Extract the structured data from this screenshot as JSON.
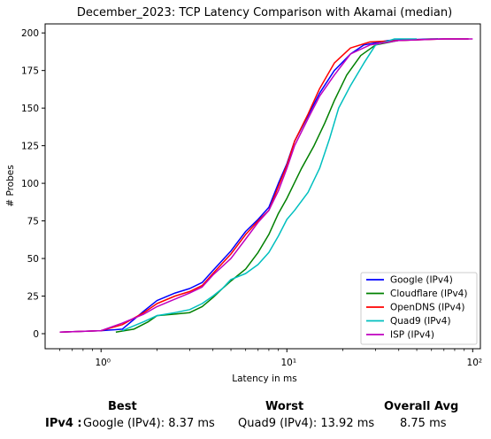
{
  "chart_data": {
    "type": "line",
    "title": "December_2023: TCP Latency Comparison with Akamai (median)",
    "xlabel": "Latency in ms",
    "ylabel": "# Probes",
    "xscale": "log",
    "xlim": [
      0.5,
      110
    ],
    "ylim": [
      -10,
      206
    ],
    "yticks": [
      0,
      25,
      50,
      75,
      100,
      125,
      150,
      175,
      200
    ],
    "xticks": [
      {
        "value": 1,
        "label": "10⁰"
      },
      {
        "value": 10,
        "label": "10¹"
      },
      {
        "value": 100,
        "label": "10²"
      }
    ],
    "grid": false,
    "legend_position": "lower-right",
    "series": [
      {
        "name": "Google (IPv4)",
        "color": "#0000ff",
        "points": [
          [
            0.6,
            1
          ],
          [
            1.0,
            2
          ],
          [
            1.3,
            3
          ],
          [
            1.7,
            15
          ],
          [
            2.0,
            22
          ],
          [
            2.5,
            27
          ],
          [
            3.0,
            30
          ],
          [
            3.5,
            34
          ],
          [
            4.0,
            42
          ],
          [
            5.0,
            55
          ],
          [
            6.0,
            68
          ],
          [
            7.0,
            76
          ],
          [
            8.0,
            84
          ],
          [
            9.0,
            100
          ],
          [
            10.0,
            113
          ],
          [
            11.0,
            128
          ],
          [
            13.0,
            145
          ],
          [
            15.0,
            160
          ],
          [
            18.0,
            175
          ],
          [
            22.0,
            186
          ],
          [
            26.0,
            192
          ],
          [
            35.0,
            195
          ],
          [
            60.0,
            196
          ],
          [
            95.0,
            196
          ]
        ]
      },
      {
        "name": "Cloudflare (IPv4)",
        "color": "#008000",
        "points": [
          [
            1.2,
            1
          ],
          [
            1.5,
            3
          ],
          [
            1.8,
            8
          ],
          [
            2.0,
            12
          ],
          [
            2.5,
            13
          ],
          [
            3.0,
            14
          ],
          [
            3.5,
            18
          ],
          [
            4.0,
            24
          ],
          [
            4.5,
            30
          ],
          [
            5.0,
            35
          ],
          [
            6.0,
            43
          ],
          [
            7.0,
            54
          ],
          [
            8.0,
            66
          ],
          [
            9.0,
            80
          ],
          [
            10.0,
            90
          ],
          [
            12.0,
            110
          ],
          [
            14.0,
            125
          ],
          [
            16.0,
            140
          ],
          [
            18.0,
            155
          ],
          [
            21.0,
            172
          ],
          [
            25.0,
            185
          ],
          [
            30.0,
            192
          ],
          [
            40.0,
            195
          ],
          [
            65.0,
            196
          ]
        ]
      },
      {
        "name": "OpenDNS (IPv4)",
        "color": "#ff0000",
        "points": [
          [
            0.6,
            1
          ],
          [
            1.0,
            2
          ],
          [
            1.3,
            6
          ],
          [
            1.7,
            14
          ],
          [
            2.0,
            20
          ],
          [
            2.5,
            25
          ],
          [
            3.0,
            28
          ],
          [
            3.5,
            32
          ],
          [
            4.0,
            40
          ],
          [
            5.0,
            53
          ],
          [
            6.0,
            66
          ],
          [
            7.0,
            75
          ],
          [
            8.0,
            82
          ],
          [
            9.0,
            98
          ],
          [
            10.0,
            112
          ],
          [
            11.0,
            128
          ],
          [
            13.0,
            146
          ],
          [
            15.0,
            163
          ],
          [
            18.0,
            180
          ],
          [
            22.0,
            190
          ],
          [
            28.0,
            194
          ],
          [
            40.0,
            195
          ],
          [
            70.0,
            196
          ],
          [
            95.0,
            196
          ]
        ]
      },
      {
        "name": "Quad9 (IPv4)",
        "color": "#00bfbf",
        "points": [
          [
            1.3,
            2
          ],
          [
            1.7,
            8
          ],
          [
            2.0,
            12
          ],
          [
            2.5,
            14
          ],
          [
            3.0,
            16
          ],
          [
            3.5,
            20
          ],
          [
            4.0,
            25
          ],
          [
            4.5,
            30
          ],
          [
            5.0,
            36
          ],
          [
            6.0,
            40
          ],
          [
            7.0,
            46
          ],
          [
            8.0,
            54
          ],
          [
            9.0,
            65
          ],
          [
            10.0,
            76
          ],
          [
            11.0,
            82
          ],
          [
            13.0,
            94
          ],
          [
            15.0,
            110
          ],
          [
            17.0,
            130
          ],
          [
            19.0,
            150
          ],
          [
            22.0,
            165
          ],
          [
            26.0,
            180
          ],
          [
            30.0,
            192
          ],
          [
            38.0,
            196
          ],
          [
            50.0,
            196
          ]
        ]
      },
      {
        "name": "ISP (IPv4)",
        "color": "#bf00bf",
        "points": [
          [
            0.6,
            1
          ],
          [
            1.0,
            2
          ],
          [
            1.3,
            7
          ],
          [
            1.7,
            13
          ],
          [
            2.0,
            18
          ],
          [
            2.5,
            23
          ],
          [
            3.0,
            27
          ],
          [
            3.5,
            31
          ],
          [
            4.0,
            39
          ],
          [
            5.0,
            50
          ],
          [
            6.0,
            63
          ],
          [
            7.0,
            74
          ],
          [
            8.0,
            82
          ],
          [
            9.0,
            95
          ],
          [
            10.0,
            110
          ],
          [
            11.0,
            125
          ],
          [
            13.0,
            143
          ],
          [
            15.0,
            158
          ],
          [
            18.0,
            172
          ],
          [
            22.0,
            186
          ],
          [
            28.0,
            192
          ],
          [
            40.0,
            195
          ],
          [
            70.0,
            196
          ],
          [
            100.0,
            196
          ]
        ]
      }
    ]
  },
  "summary": {
    "best_header": "Best",
    "worst_header": "Worst",
    "avg_header": "Overall Avg",
    "row_label": "IPv4 :",
    "best_value": "Google (IPv4): 8.37 ms",
    "worst_value": "Quad9 (IPv4): 13.92 ms",
    "avg_value": "8.75 ms"
  }
}
